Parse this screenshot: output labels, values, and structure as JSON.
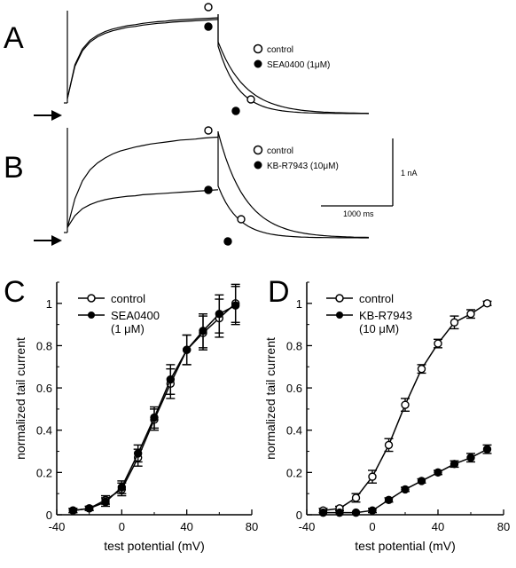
{
  "panels": {
    "A": {
      "letter": "A",
      "legend": [
        {
          "marker": "open-circle",
          "label": "control"
        },
        {
          "marker": "filled-circle",
          "label": "SEA0400 (1μM)"
        }
      ]
    },
    "B": {
      "letter": "B",
      "legend": [
        {
          "marker": "open-circle",
          "label": "control"
        },
        {
          "marker": "filled-circle",
          "label": "KB-R7943 (10μM)"
        }
      ],
      "scale_bar": {
        "current_label": "1 nA",
        "time_label": "1000 ms"
      }
    },
    "C": {
      "letter": "C"
    },
    "D": {
      "letter": "D"
    }
  },
  "chart_data": [
    {
      "panel": "A",
      "type": "line",
      "xlim": [
        0,
        1
      ],
      "ylim": [
        0,
        1
      ],
      "series": [
        {
          "name": "control",
          "marker": "open-circle",
          "x": [
            0.0,
            0.05,
            0.1,
            0.15,
            0.2,
            0.25,
            0.3,
            0.35,
            0.4,
            0.45,
            0.5,
            0.55,
            0.6,
            0.65,
            0.7,
            0.75,
            0.8,
            0.85,
            0.9,
            0.95,
            1.0
          ],
          "y": [
            0.05,
            0.44,
            0.62,
            0.72,
            0.78,
            0.82,
            0.85,
            0.87,
            0.89,
            0.9,
            0.915,
            0.925,
            0.935,
            0.94,
            0.95,
            0.955,
            0.96,
            0.965,
            0.97,
            0.975,
            0.98
          ]
        },
        {
          "name": "SEA0400 (1μM)",
          "marker": "filled-circle",
          "x": [
            0.0,
            0.05,
            0.1,
            0.15,
            0.2,
            0.25,
            0.3,
            0.35,
            0.4,
            0.45,
            0.5,
            0.55,
            0.6,
            0.65,
            0.7,
            0.75,
            0.8,
            0.85,
            0.9,
            0.95,
            1.0
          ],
          "y": [
            0.05,
            0.42,
            0.6,
            0.7,
            0.76,
            0.8,
            0.83,
            0.85,
            0.87,
            0.88,
            0.895,
            0.905,
            0.915,
            0.92,
            0.93,
            0.935,
            0.94,
            0.945,
            0.95,
            0.955,
            0.96
          ]
        }
      ]
    },
    {
      "panel": "B",
      "type": "line",
      "xlim": [
        0,
        1
      ],
      "ylim": [
        0,
        1
      ],
      "series": [
        {
          "name": "control",
          "marker": "open-circle",
          "x": [
            0.0,
            0.05,
            0.1,
            0.15,
            0.2,
            0.25,
            0.3,
            0.35,
            0.4,
            0.45,
            0.5,
            0.55,
            0.6,
            0.65,
            0.7,
            0.75,
            0.8,
            0.85,
            0.9,
            0.95,
            1.0
          ],
          "y": [
            0.05,
            0.34,
            0.52,
            0.63,
            0.7,
            0.75,
            0.79,
            0.82,
            0.84,
            0.86,
            0.875,
            0.89,
            0.9,
            0.91,
            0.92,
            0.93,
            0.935,
            0.94,
            0.95,
            0.955,
            0.96
          ]
        },
        {
          "name": "KB-R7943 (10μM)",
          "marker": "filled-circle",
          "x": [
            0.0,
            0.05,
            0.1,
            0.15,
            0.2,
            0.25,
            0.3,
            0.35,
            0.4,
            0.45,
            0.5,
            0.55,
            0.6,
            0.65,
            0.7,
            0.75,
            0.8,
            0.85,
            0.9,
            0.95,
            1.0
          ],
          "y": [
            0.05,
            0.17,
            0.24,
            0.28,
            0.31,
            0.33,
            0.345,
            0.355,
            0.365,
            0.37,
            0.38,
            0.385,
            0.39,
            0.395,
            0.4,
            0.405,
            0.41,
            0.415,
            0.42,
            0.425,
            0.43
          ]
        }
      ]
    },
    {
      "panel": "C",
      "type": "line",
      "xlabel": "test potential (mV)",
      "ylabel": "normalized tail current",
      "xlim": [
        -40,
        80
      ],
      "ylim": [
        0,
        1.1
      ],
      "xticks": [
        -40,
        0,
        40,
        80
      ],
      "yticks": [
        0,
        0.2,
        0.4,
        0.6,
        0.8,
        1
      ],
      "series": [
        {
          "name": "control",
          "marker": "open-circle",
          "x": [
            -30,
            -20,
            -10,
            0,
            10,
            20,
            30,
            40,
            50,
            60,
            70
          ],
          "y": [
            0.02,
            0.03,
            0.07,
            0.12,
            0.27,
            0.45,
            0.62,
            0.78,
            0.86,
            0.93,
            1.0
          ],
          "err": [
            0.01,
            0.01,
            0.02,
            0.03,
            0.04,
            0.05,
            0.07,
            0.07,
            0.08,
            0.09,
            0.09
          ]
        },
        {
          "name": "SEA0400\n(1 μM)",
          "marker": "filled-circle",
          "x": [
            -30,
            -20,
            -10,
            0,
            10,
            20,
            30,
            40,
            50,
            60,
            70
          ],
          "y": [
            0.02,
            0.03,
            0.06,
            0.13,
            0.29,
            0.46,
            0.64,
            0.78,
            0.87,
            0.95,
            0.99
          ],
          "err": [
            0.01,
            0.01,
            0.02,
            0.03,
            0.04,
            0.05,
            0.07,
            0.07,
            0.08,
            0.09,
            0.09
          ]
        }
      ]
    },
    {
      "panel": "D",
      "type": "line",
      "xlabel": "test potential (mV)",
      "ylabel": "normalized tail current",
      "xlim": [
        -40,
        80
      ],
      "ylim": [
        0,
        1.1
      ],
      "xticks": [
        -40,
        0,
        40,
        80
      ],
      "yticks": [
        0,
        0.2,
        0.4,
        0.6,
        0.8,
        1
      ],
      "series": [
        {
          "name": "control",
          "marker": "open-circle",
          "x": [
            -30,
            -20,
            -10,
            0,
            10,
            20,
            30,
            40,
            50,
            60,
            70
          ],
          "y": [
            0.02,
            0.03,
            0.08,
            0.18,
            0.33,
            0.52,
            0.69,
            0.81,
            0.91,
            0.95,
            1.0
          ],
          "err": [
            0.01,
            0.01,
            0.02,
            0.03,
            0.03,
            0.03,
            0.02,
            0.02,
            0.03,
            0.02,
            0.01
          ]
        },
        {
          "name": "KB-R7943\n(10 μM)",
          "marker": "filled-circle",
          "x": [
            -30,
            -20,
            -10,
            0,
            10,
            20,
            30,
            40,
            50,
            60,
            70
          ],
          "y": [
            0.01,
            0.01,
            0.01,
            0.02,
            0.07,
            0.12,
            0.16,
            0.2,
            0.24,
            0.27,
            0.31
          ],
          "err": [
            0.005,
            0.005,
            0.005,
            0.01,
            0.01,
            0.01,
            0.01,
            0.01,
            0.015,
            0.02,
            0.02
          ]
        }
      ]
    }
  ]
}
